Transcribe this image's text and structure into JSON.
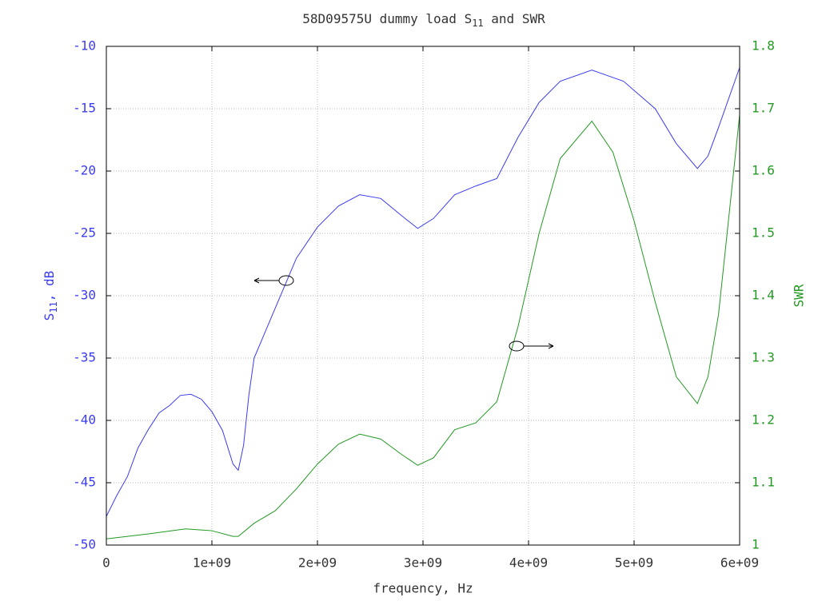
{
  "chart_data": {
    "type": "line",
    "title_parts": [
      "58D09575U dummy load S",
      "11",
      " and SWR"
    ],
    "xlabel": "frequency, Hz",
    "ylabel_parts": [
      "S",
      "11",
      ", dB"
    ],
    "y2label": "SWR",
    "xlim": [
      0,
      6000000000
    ],
    "xticks": [
      0,
      {
        "value": 1000000000,
        "label": "1e+09"
      },
      {
        "value": 2000000000,
        "label": "2e+09"
      },
      {
        "value": 3000000000,
        "label": "3e+09"
      },
      {
        "value": 4000000000,
        "label": "4e+09"
      },
      {
        "value": 5000000000,
        "label": "5e+09"
      },
      {
        "value": 6000000000,
        "label": "6e+09"
      }
    ],
    "ylim": [
      -50,
      -10
    ],
    "yticks": [
      -50,
      -45,
      -40,
      -35,
      -30,
      -25,
      -20,
      -15,
      -10
    ],
    "y2lim": [
      1,
      1.8
    ],
    "y2ticks": [
      1,
      1.1,
      1.2,
      1.3,
      1.4,
      1.5,
      1.6,
      1.7,
      1.8
    ],
    "grid": true,
    "series": [
      {
        "color": "#3c3cf0",
        "axis": "y",
        "x": [
          0,
          100000000,
          200000000,
          300000000,
          400000000,
          500000000,
          600000000,
          700000000,
          800000000,
          900000000,
          1000000000,
          1100000000,
          1200000000,
          1250000000,
          1300000000,
          1350000000,
          1400000000,
          1500000000,
          1600000000,
          1700000000,
          1800000000,
          2000000000,
          2200000000,
          2400000000,
          2600000000,
          2800000000,
          2950000000,
          3100000000,
          3300000000,
          3500000000,
          3700000000,
          3900000000,
          4100000000,
          4300000000,
          4600000000,
          4900000000,
          5200000000,
          5400000000,
          5600000000,
          5700000000,
          5800000000,
          6000000000
        ],
        "values": [
          -47.7,
          -46,
          -44.5,
          -42.2,
          -40.7,
          -39.4,
          -38.8,
          -38.0,
          -37.9,
          -38.3,
          -39.3,
          -40.8,
          -43.5,
          -44.0,
          -42,
          -38,
          -35,
          -33,
          -31,
          -29,
          -27,
          -24.5,
          -22.8,
          -21.9,
          -22.2,
          -23.6,
          -24.6,
          -23.8,
          -21.9,
          -21.2,
          -20.6,
          -17.3,
          -14.5,
          -12.8,
          -11.9,
          -12.8,
          -15,
          -17.8,
          -19.8,
          -18.8,
          -16.5,
          -11.7
        ]
      },
      {
        "color": "#229922",
        "axis": "y2",
        "x": [
          0,
          400000000,
          750000000,
          1000000000,
          1200000000,
          1250000000,
          1400000000,
          1600000000,
          1800000000,
          2000000000,
          2200000000,
          2400000000,
          2600000000,
          2800000000,
          2950000000,
          3100000000,
          3300000000,
          3500000000,
          3700000000,
          3900000000,
          4100000000,
          4300000000,
          4600000000,
          4800000000,
          5000000000,
          5200000000,
          5400000000,
          5600000000,
          5700000000,
          5800000000,
          6000000000
        ],
        "values": [
          1.01,
          1.018,
          1.026,
          1.023,
          1.014,
          1.014,
          1.035,
          1.055,
          1.09,
          1.13,
          1.162,
          1.178,
          1.17,
          1.145,
          1.128,
          1.14,
          1.185,
          1.196,
          1.23,
          1.35,
          1.5,
          1.62,
          1.68,
          1.63,
          1.52,
          1.39,
          1.27,
          1.227,
          1.27,
          1.37,
          1.69
        ]
      }
    ]
  }
}
